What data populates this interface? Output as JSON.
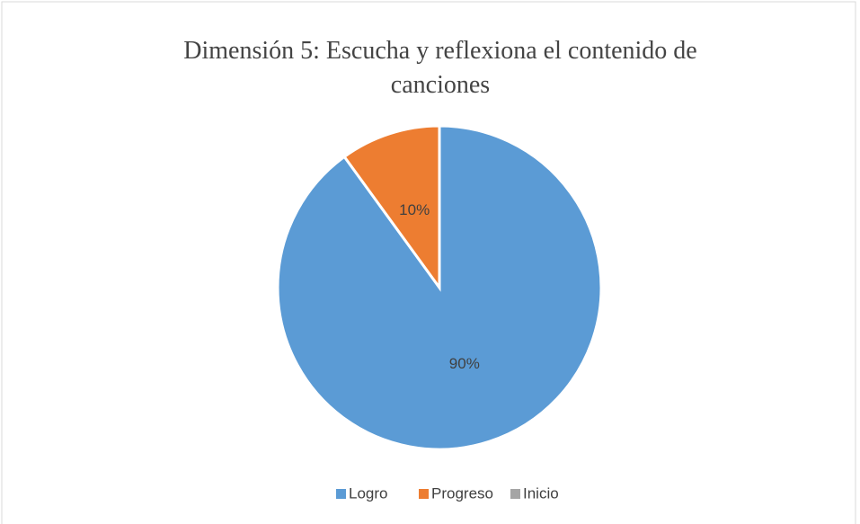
{
  "chart_data": {
    "type": "pie",
    "title": "Dimensión 5: Escucha y reflexiona el contenido de canciones",
    "categories": [
      "Logro",
      "Progreso",
      "Inicio"
    ],
    "values": [
      90,
      10,
      0
    ],
    "value_labels": [
      "90%",
      "10%",
      null
    ],
    "colors": [
      "#5b9bd5",
      "#ed7d31",
      "#a5a5a5"
    ],
    "legend": "bottom"
  }
}
